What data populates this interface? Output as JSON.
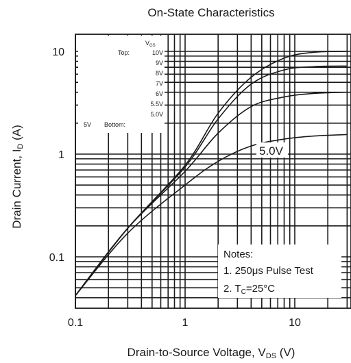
{
  "chart_data": {
    "type": "line",
    "title": "On-State Characteristics",
    "xlabel": "Drain-to-Source Voltage, V",
    "xlabel_sub": "DS",
    "xlabel_unit": " (V)",
    "ylabel": "Drain Current, I",
    "ylabel_sub": "D",
    "ylabel_unit": " (A)",
    "x_scale": "log",
    "y_scale": "log",
    "xlim": [
      0.1,
      30
    ],
    "ylim": [
      0.02,
      15
    ],
    "x_ticks": [
      {
        "value": 0.1,
        "label": "0.1"
      },
      {
        "value": 1,
        "label": "1"
      },
      {
        "value": 10,
        "label": "10"
      }
    ],
    "y_ticks": [
      {
        "value": 0.1,
        "label": "0.1"
      },
      {
        "value": 1,
        "label": "1"
      },
      {
        "value": 10,
        "label": "10"
      }
    ],
    "grid": true,
    "series": [
      {
        "name": "10V",
        "points": [
          [
            0.1,
            0.042
          ],
          [
            0.3,
            0.19
          ],
          [
            1,
            0.78
          ],
          [
            2,
            2.5
          ],
          [
            4,
            5.6
          ],
          [
            8,
            8.6
          ],
          [
            15,
            9.8
          ],
          [
            30,
            10
          ]
        ]
      },
      {
        "name": "9V",
        "points": [
          [
            0.1,
            0.042
          ],
          [
            0.3,
            0.19
          ],
          [
            1,
            0.75
          ],
          [
            2,
            2.2
          ],
          [
            4,
            4.8
          ],
          [
            8,
            6.6
          ],
          [
            15,
            7.1
          ],
          [
            30,
            7.2
          ]
        ]
      },
      {
        "name": "7V",
        "points": [
          [
            0.1,
            0.042
          ],
          [
            0.3,
            0.19
          ],
          [
            1,
            0.68
          ],
          [
            2,
            1.6
          ],
          [
            4,
            2.9
          ],
          [
            8,
            3.6
          ],
          [
            15,
            3.9
          ],
          [
            30,
            4
          ]
        ]
      },
      {
        "name": "5.0V",
        "points": [
          [
            0.1,
            0.042
          ],
          [
            0.3,
            0.17
          ],
          [
            1,
            0.5
          ],
          [
            2,
            0.85
          ],
          [
            4,
            1.2
          ],
          [
            8,
            1.4
          ],
          [
            15,
            1.5
          ],
          [
            30,
            1.55
          ]
        ]
      }
    ],
    "legend": {
      "header": "V",
      "header_sub": "GS",
      "top_label": "Top:",
      "bottom_label": "Bottom:",
      "left_label": "5V",
      "entries": [
        "10V",
        "9V",
        "8V",
        "7V",
        "6V",
        "5.5V",
        "5.0V"
      ]
    },
    "annotation_curve_label": "5.0V",
    "notes": {
      "title": "Notes:",
      "line1": "1. 250μs Pulse Test",
      "line2_prefix": "2. T",
      "line2_sub": "C",
      "line2_suffix": "=25°C"
    }
  }
}
